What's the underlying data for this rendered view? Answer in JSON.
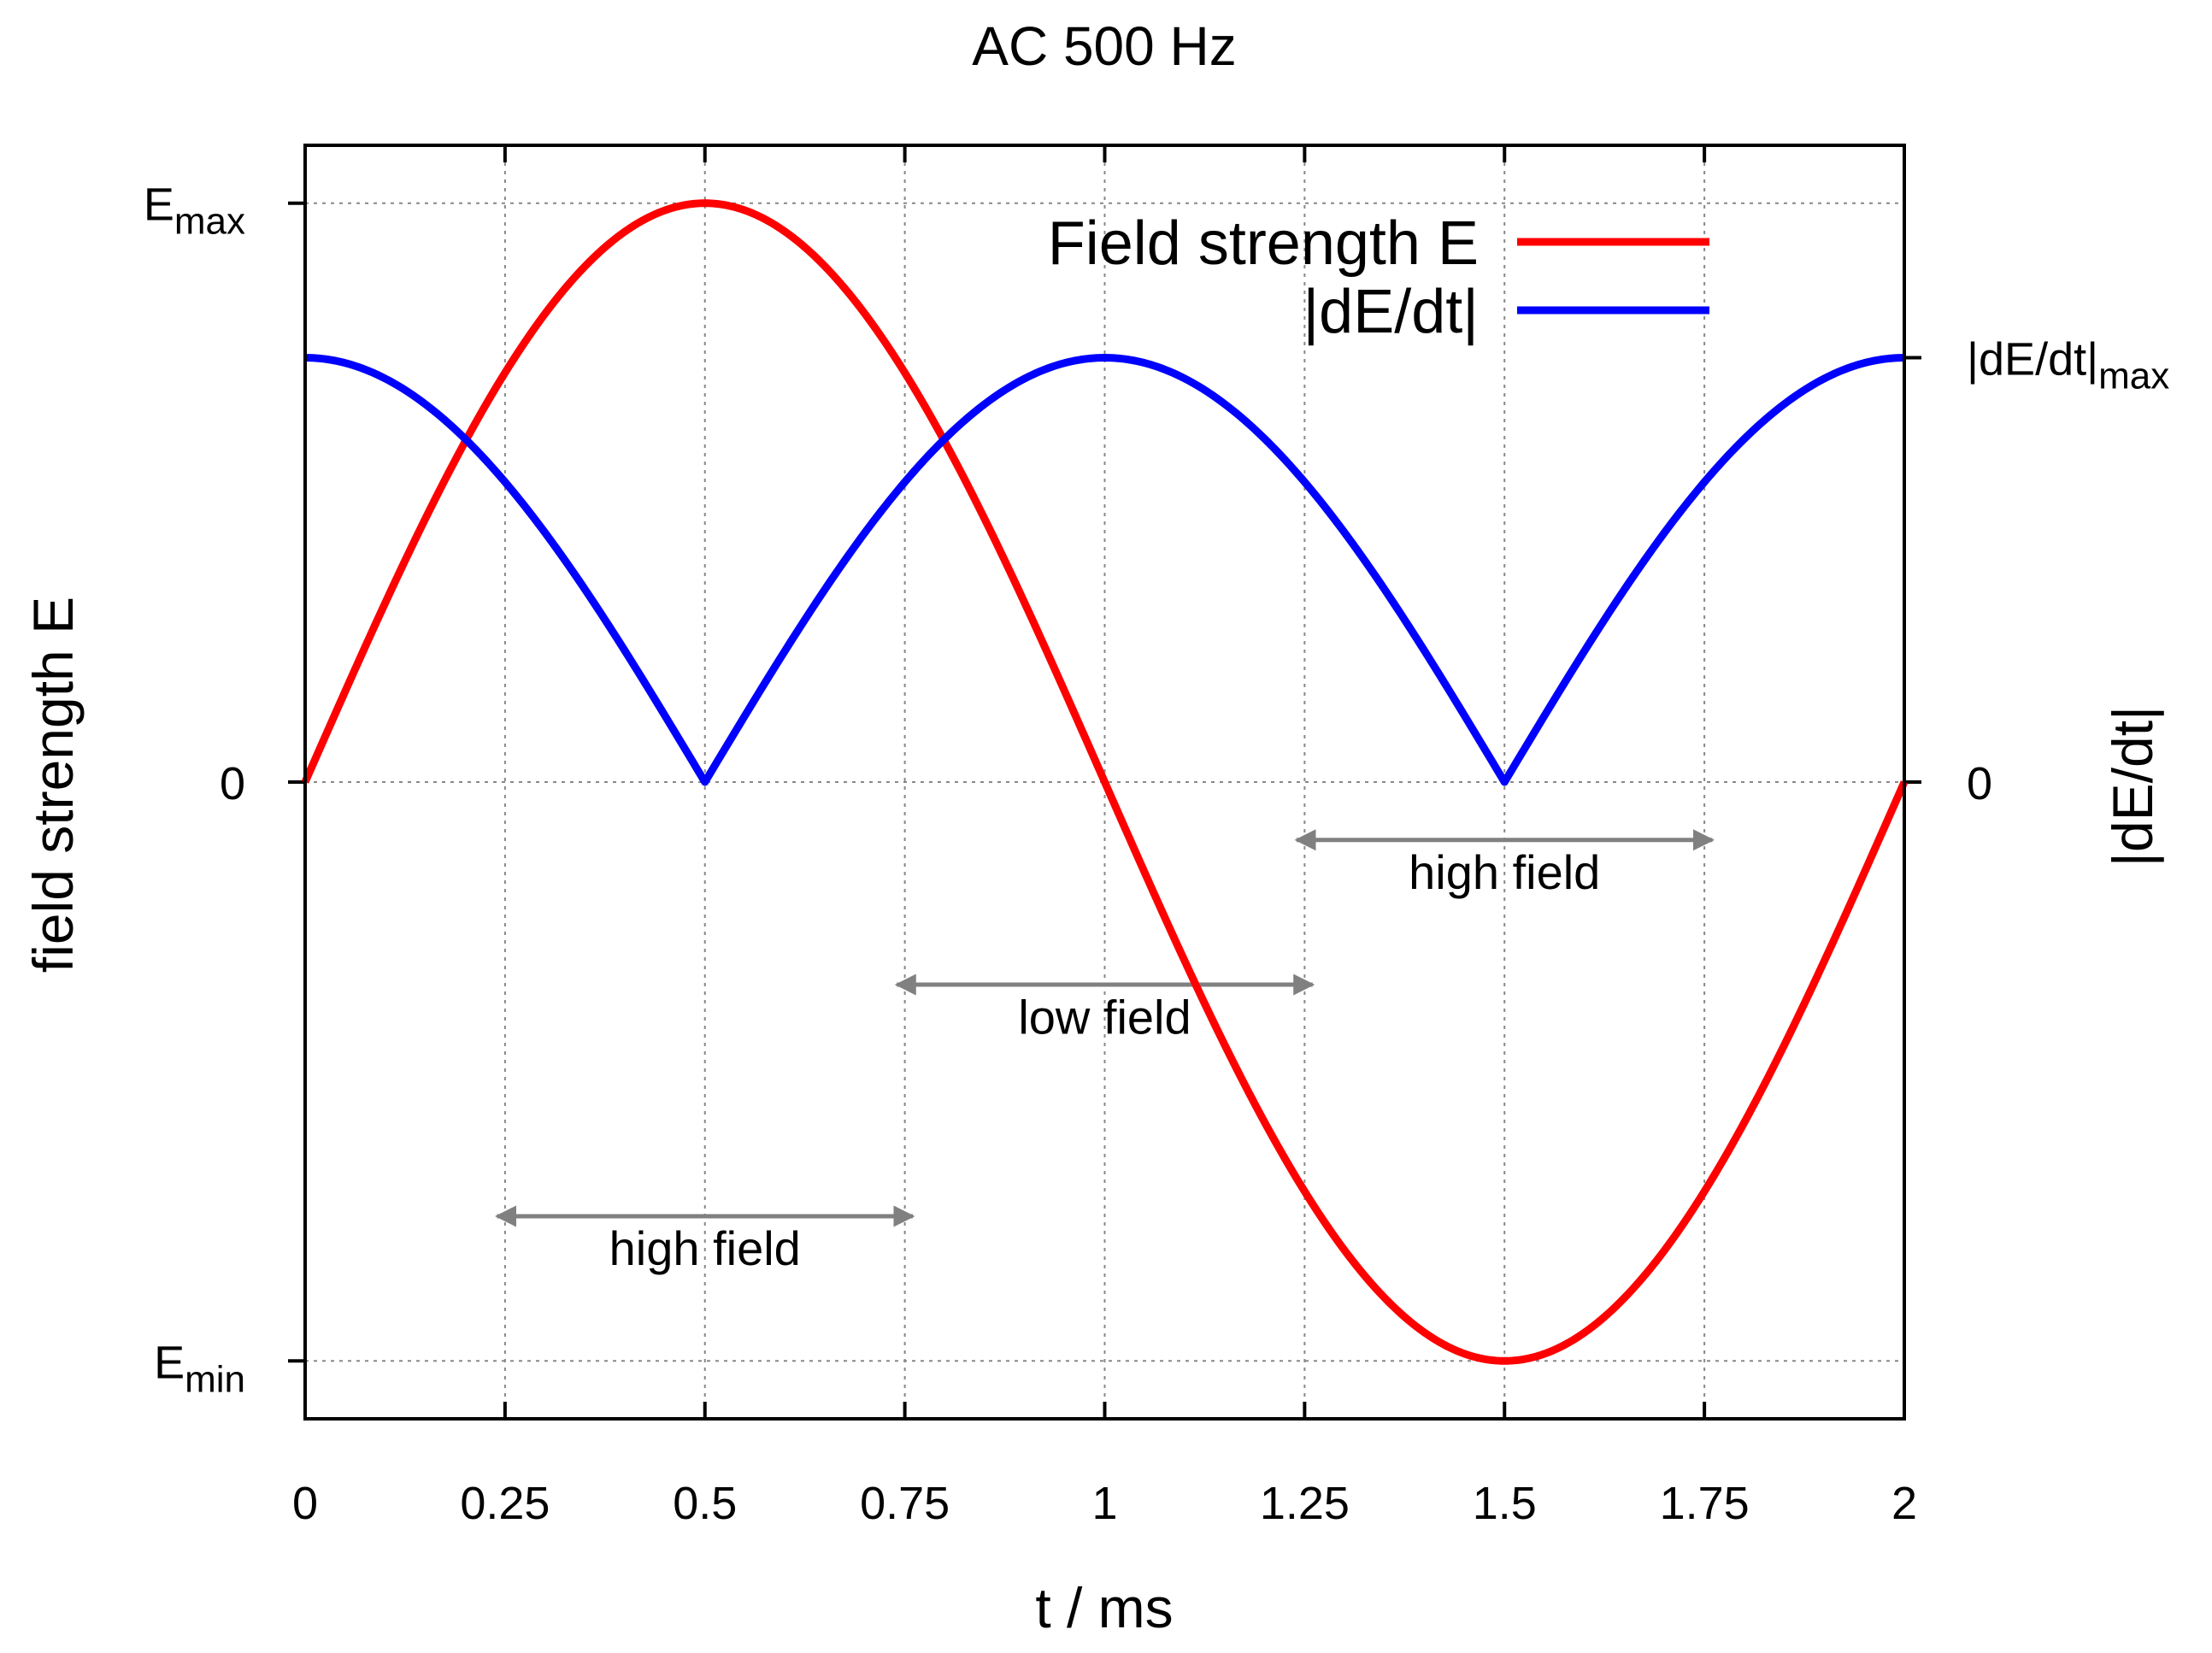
{
  "chart_data": {
    "type": "line",
    "title": "AC 500 Hz",
    "xlabel": "t / ms",
    "ylabel_left": "field strength E",
    "ylabel_right": "|dE/dt|",
    "xlim": [
      0,
      2
    ],
    "ylim": [
      -1.1,
      1.1
    ],
    "grid": true,
    "x_ticks": [
      {
        "value": 0,
        "label": "0"
      },
      {
        "value": 0.25,
        "label": "0.25"
      },
      {
        "value": 0.5,
        "label": "0.5"
      },
      {
        "value": 0.75,
        "label": "0.75"
      },
      {
        "value": 1,
        "label": "1"
      },
      {
        "value": 1.25,
        "label": "1.25"
      },
      {
        "value": 1.5,
        "label": "1.5"
      },
      {
        "value": 1.75,
        "label": "1.75"
      },
      {
        "value": 2,
        "label": "2"
      }
    ],
    "y_ticks_left": [
      {
        "value": 1,
        "base": "E",
        "sub": "max"
      },
      {
        "value": 0,
        "base": "0",
        "sub": ""
      },
      {
        "value": -1,
        "base": "E",
        "sub": "min"
      }
    ],
    "y_ticks_right": [
      {
        "value": 0.733,
        "base": "|dE/dt|",
        "sub": "max"
      },
      {
        "value": 0,
        "base": "0",
        "sub": ""
      }
    ],
    "legend": {
      "position": "top-right",
      "entries": [
        {
          "label": "Field strength E",
          "color": "#ff0000"
        },
        {
          "label": "|dE/dt|",
          "color": "#0000ff"
        }
      ]
    },
    "series": [
      {
        "name": "Field strength E",
        "color": "#ff0000",
        "function": "sin(pi*t)",
        "amplitude": 1,
        "x": [
          0,
          0.25,
          0.5,
          0.75,
          1,
          1.25,
          1.5,
          1.75,
          2
        ],
        "values": [
          0,
          0.707,
          1,
          0.707,
          0,
          -0.707,
          -1,
          -0.707,
          0
        ]
      },
      {
        "name": "|dE/dt|",
        "color": "#0000ff",
        "function": "|cos(pi*t)|",
        "amplitude": 0.733,
        "x": [
          0,
          0.25,
          0.5,
          0.75,
          1,
          1.25,
          1.5,
          1.75,
          2
        ],
        "values": [
          0.733,
          0.518,
          0,
          0.518,
          0.733,
          0.518,
          0,
          0.518,
          0.733
        ]
      }
    ],
    "annotations": [
      {
        "label": "high field",
        "x_start": 0.24,
        "x_end": 0.76,
        "y_arrow": -0.75,
        "y_text": -0.805
      },
      {
        "label": "low field",
        "x_start": 0.74,
        "x_end": 1.26,
        "y_arrow": -0.35,
        "y_text": -0.405
      },
      {
        "label": "high field",
        "x_start": 1.24,
        "x_end": 1.76,
        "y_arrow": -0.1,
        "y_text": -0.155
      }
    ],
    "annotation_color": "#808080"
  }
}
